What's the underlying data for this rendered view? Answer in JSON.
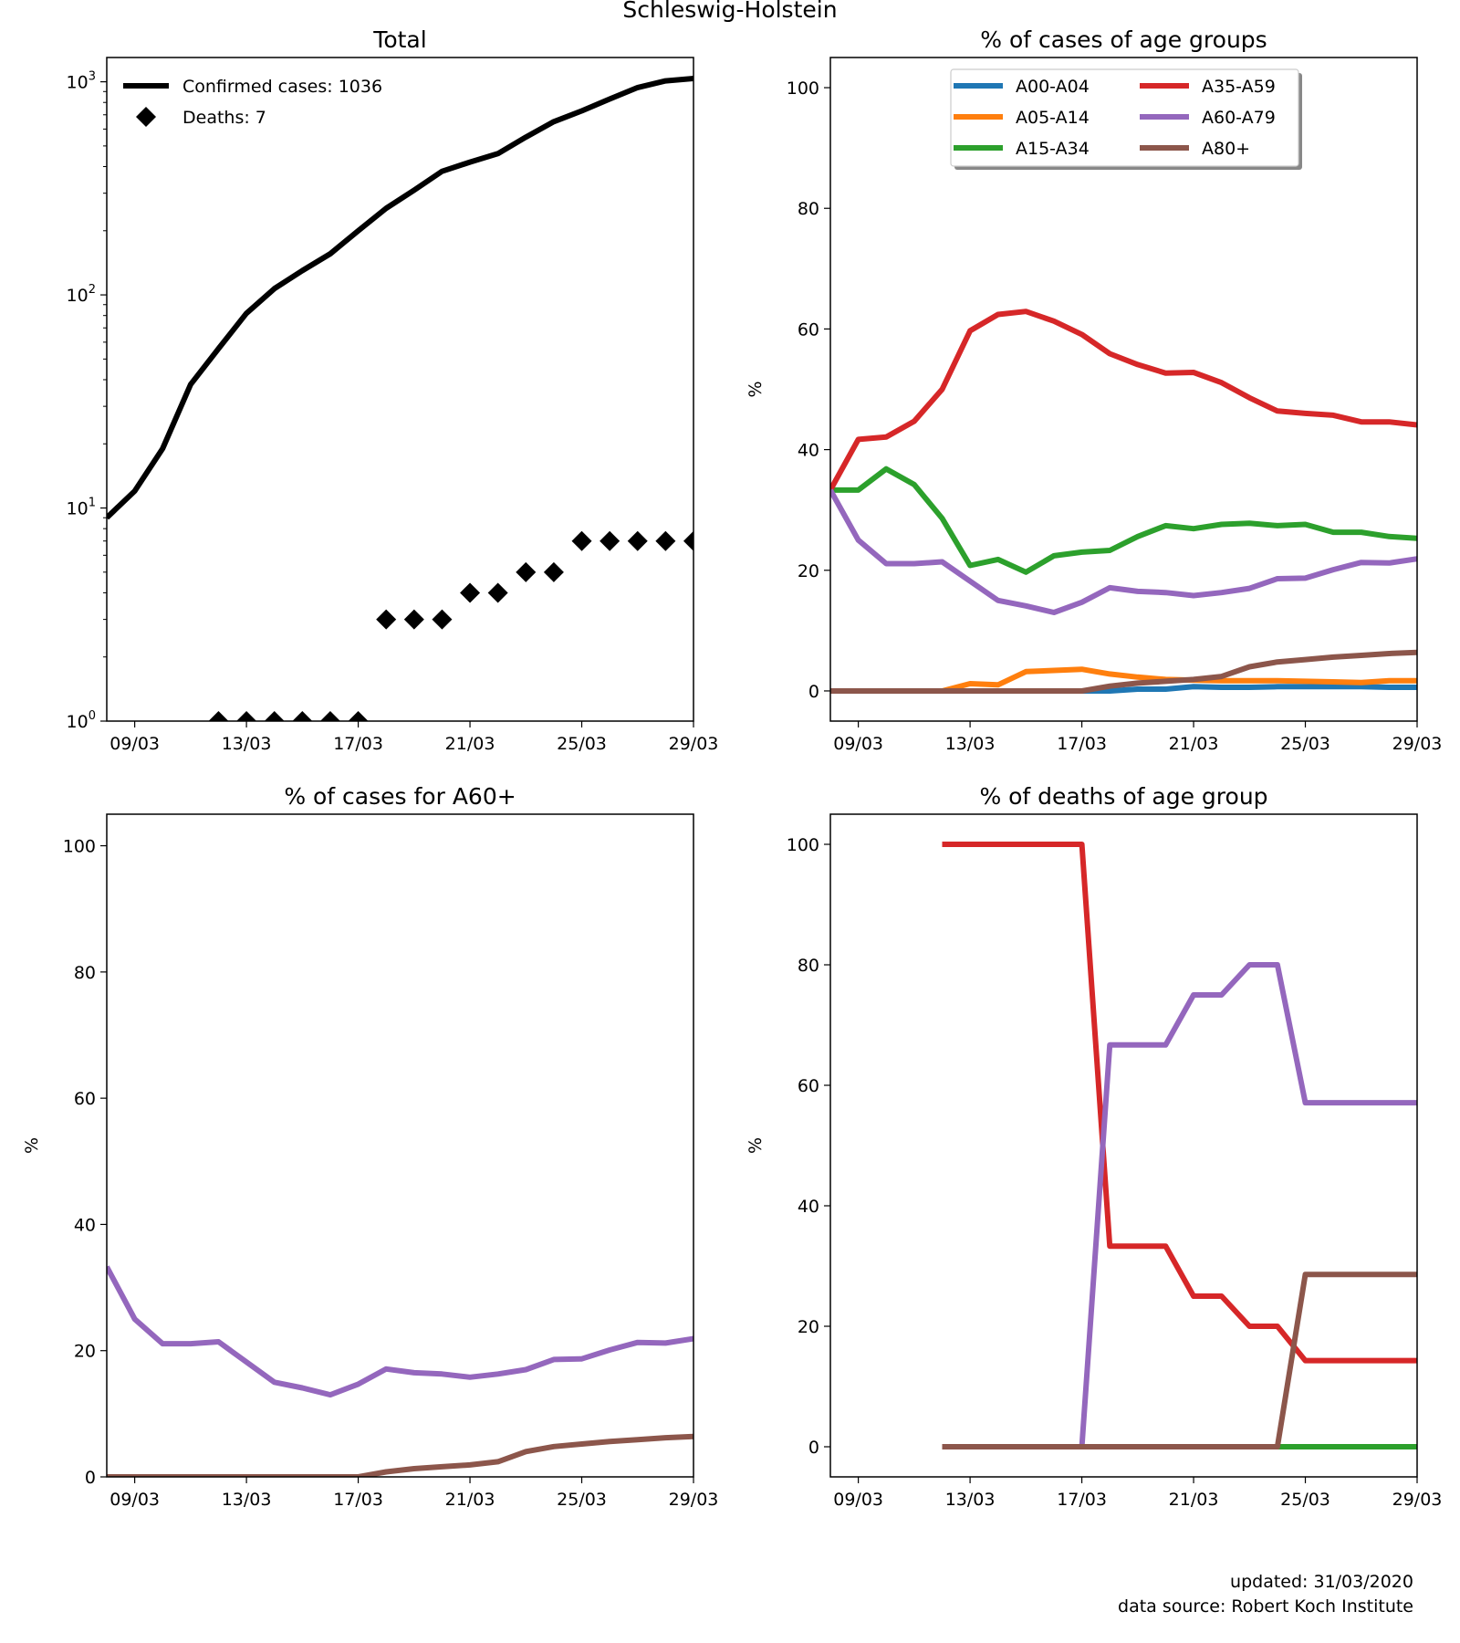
{
  "figure": {
    "suptitle": "Schleswig-Holstein",
    "footer_updated": "updated: 31/03/2020",
    "footer_source": "data source: Robert Koch Institute"
  },
  "colors": {
    "A00-A04": "#1f77b4",
    "A05-A14": "#ff7f0e",
    "A15-A34": "#2ca02c",
    "A35-A59": "#d62728",
    "A60-A79": "#9467bd",
    "A80+": "#8c564b",
    "total": "#000000"
  },
  "chart_data": [
    {
      "id": "total",
      "type": "line",
      "title": "Total",
      "xlabel": "",
      "ylabel": "",
      "yscale": "log",
      "ylim": [
        1,
        1300
      ],
      "xlim": [
        "08/03",
        "29/03"
      ],
      "xticks": [
        "09/03",
        "13/03",
        "17/03",
        "21/03",
        "25/03",
        "29/03"
      ],
      "yticks": [
        1,
        10,
        100,
        1000
      ],
      "legend": "top-left",
      "x": [
        "08/03",
        "09/03",
        "10/03",
        "11/03",
        "12/03",
        "13/03",
        "14/03",
        "15/03",
        "16/03",
        "17/03",
        "18/03",
        "19/03",
        "20/03",
        "21/03",
        "22/03",
        "23/03",
        "24/03",
        "25/03",
        "26/03",
        "27/03",
        "28/03",
        "29/03"
      ],
      "series": [
        {
          "name": "Confirmed cases: 1036",
          "key": "total",
          "style": "line",
          "values": [
            9,
            12,
            19,
            38,
            56,
            82,
            107,
            130,
            156,
            200,
            255,
            310,
            380,
            420,
            460,
            550,
            650,
            730,
            830,
            940,
            1010,
            1036
          ]
        },
        {
          "name": "Deaths: 7",
          "key": "total",
          "style": "diamond",
          "values": [
            null,
            null,
            null,
            null,
            1,
            1,
            1,
            1,
            1,
            1,
            3,
            3,
            3,
            4,
            4,
            5,
            5,
            7,
            7,
            7,
            7,
            7
          ]
        }
      ]
    },
    {
      "id": "cases_age",
      "type": "line",
      "title": "% of cases of age groups",
      "xlabel": "",
      "ylabel": "%",
      "ylim": [
        -5,
        105
      ],
      "xlim": [
        "08/03",
        "29/03"
      ],
      "xticks": [
        "09/03",
        "13/03",
        "17/03",
        "21/03",
        "25/03",
        "29/03"
      ],
      "yticks": [
        0,
        20,
        40,
        60,
        80,
        100
      ],
      "legend": "top-center",
      "x": [
        "08/03",
        "09/03",
        "10/03",
        "11/03",
        "12/03",
        "13/03",
        "14/03",
        "15/03",
        "16/03",
        "17/03",
        "18/03",
        "19/03",
        "20/03",
        "21/03",
        "22/03",
        "23/03",
        "24/03",
        "25/03",
        "26/03",
        "27/03",
        "28/03",
        "29/03"
      ],
      "series": [
        {
          "name": "A00-A04",
          "values": [
            0,
            0,
            0,
            0,
            0,
            0,
            0,
            0,
            0,
            0,
            0,
            0.3,
            0.3,
            0.7,
            0.6,
            0.6,
            0.7,
            0.7,
            0.7,
            0.7,
            0.6,
            0.6
          ]
        },
        {
          "name": "A05-A14",
          "values": [
            0,
            0,
            0,
            0,
            0,
            1.2,
            1.0,
            3.2,
            3.4,
            3.6,
            2.8,
            2.3,
            1.9,
            1.8,
            1.7,
            1.7,
            1.7,
            1.6,
            1.5,
            1.4,
            1.7,
            1.7
          ]
        },
        {
          "name": "A15-A34",
          "values": [
            33.3,
            33.3,
            36.8,
            34.2,
            28.6,
            20.8,
            21.8,
            19.7,
            22.4,
            23.0,
            23.3,
            25.6,
            27.4,
            26.9,
            27.6,
            27.8,
            27.4,
            27.6,
            26.3,
            26.3,
            25.6,
            25.3
          ]
        },
        {
          "name": "A35-A59",
          "values": [
            33.3,
            41.7,
            42.1,
            44.7,
            50.0,
            59.7,
            62.4,
            62.9,
            61.3,
            59.1,
            55.9,
            54.1,
            52.7,
            52.8,
            51.1,
            48.6,
            46.4,
            46.0,
            45.7,
            44.6,
            44.6,
            44.1
          ]
        },
        {
          "name": "A60-A79",
          "values": [
            33.3,
            25.0,
            21.1,
            21.1,
            21.4,
            18.2,
            15.0,
            14.1,
            13.0,
            14.7,
            17.1,
            16.5,
            16.3,
            15.8,
            16.3,
            17.0,
            18.6,
            18.7,
            20.1,
            21.3,
            21.2,
            21.9
          ]
        },
        {
          "name": "A80+",
          "values": [
            0,
            0,
            0,
            0,
            0,
            0,
            0,
            0,
            0,
            0,
            0.8,
            1.3,
            1.6,
            1.9,
            2.4,
            4.0,
            4.8,
            5.2,
            5.6,
            5.9,
            6.2,
            6.4
          ]
        }
      ]
    },
    {
      "id": "cases_a60",
      "type": "line",
      "title": "% of cases for A60+",
      "xlabel": "",
      "ylabel": "%",
      "ylim": [
        0,
        105
      ],
      "xlim": [
        "08/03",
        "29/03"
      ],
      "xticks": [
        "09/03",
        "13/03",
        "17/03",
        "21/03",
        "25/03",
        "29/03"
      ],
      "yticks": [
        0,
        20,
        40,
        60,
        80,
        100
      ],
      "x": [
        "08/03",
        "09/03",
        "10/03",
        "11/03",
        "12/03",
        "13/03",
        "14/03",
        "15/03",
        "16/03",
        "17/03",
        "18/03",
        "19/03",
        "20/03",
        "21/03",
        "22/03",
        "23/03",
        "24/03",
        "25/03",
        "26/03",
        "27/03",
        "28/03",
        "29/03"
      ],
      "series": [
        {
          "name": "A60-A79",
          "values": [
            33.3,
            25.0,
            21.1,
            21.1,
            21.4,
            18.2,
            15.0,
            14.1,
            13.0,
            14.7,
            17.1,
            16.5,
            16.3,
            15.8,
            16.3,
            17.0,
            18.6,
            18.7,
            20.1,
            21.3,
            21.2,
            21.9
          ]
        },
        {
          "name": "A80+",
          "values": [
            0,
            0,
            0,
            0,
            0,
            0,
            0,
            0,
            0,
            0,
            0.8,
            1.3,
            1.6,
            1.9,
            2.4,
            4.0,
            4.8,
            5.2,
            5.6,
            5.9,
            6.2,
            6.4
          ]
        }
      ]
    },
    {
      "id": "deaths_age",
      "type": "line",
      "title": "% of deaths of age group",
      "xlabel": "",
      "ylabel": "%",
      "ylim": [
        -5,
        105
      ],
      "xlim": [
        "08/03",
        "29/03"
      ],
      "xticks": [
        "09/03",
        "13/03",
        "17/03",
        "21/03",
        "25/03",
        "29/03"
      ],
      "yticks": [
        0,
        20,
        40,
        60,
        80,
        100
      ],
      "x": [
        "12/03",
        "13/03",
        "14/03",
        "15/03",
        "16/03",
        "17/03",
        "18/03",
        "19/03",
        "20/03",
        "21/03",
        "22/03",
        "23/03",
        "24/03",
        "25/03",
        "26/03",
        "27/03",
        "28/03",
        "29/03"
      ],
      "series": [
        {
          "name": "A15-A34",
          "values": [
            0,
            0,
            0,
            0,
            0,
            0,
            0,
            0,
            0,
            0,
            0,
            0,
            0,
            0,
            0,
            0,
            0,
            0
          ]
        },
        {
          "name": "A35-A59",
          "values": [
            100,
            100,
            100,
            100,
            100,
            100,
            33.3,
            33.3,
            33.3,
            25,
            25,
            20,
            20,
            14.3,
            14.3,
            14.3,
            14.3,
            14.3
          ]
        },
        {
          "name": "A60-A79",
          "values": [
            0,
            0,
            0,
            0,
            0,
            0,
            66.7,
            66.7,
            66.7,
            75,
            75,
            80,
            80,
            57.1,
            57.1,
            57.1,
            57.1,
            57.1
          ]
        },
        {
          "name": "A80+",
          "values": [
            0,
            0,
            0,
            0,
            0,
            0,
            0,
            0,
            0,
            0,
            0,
            0,
            0,
            28.6,
            28.6,
            28.6,
            28.6,
            28.6
          ]
        }
      ]
    }
  ]
}
